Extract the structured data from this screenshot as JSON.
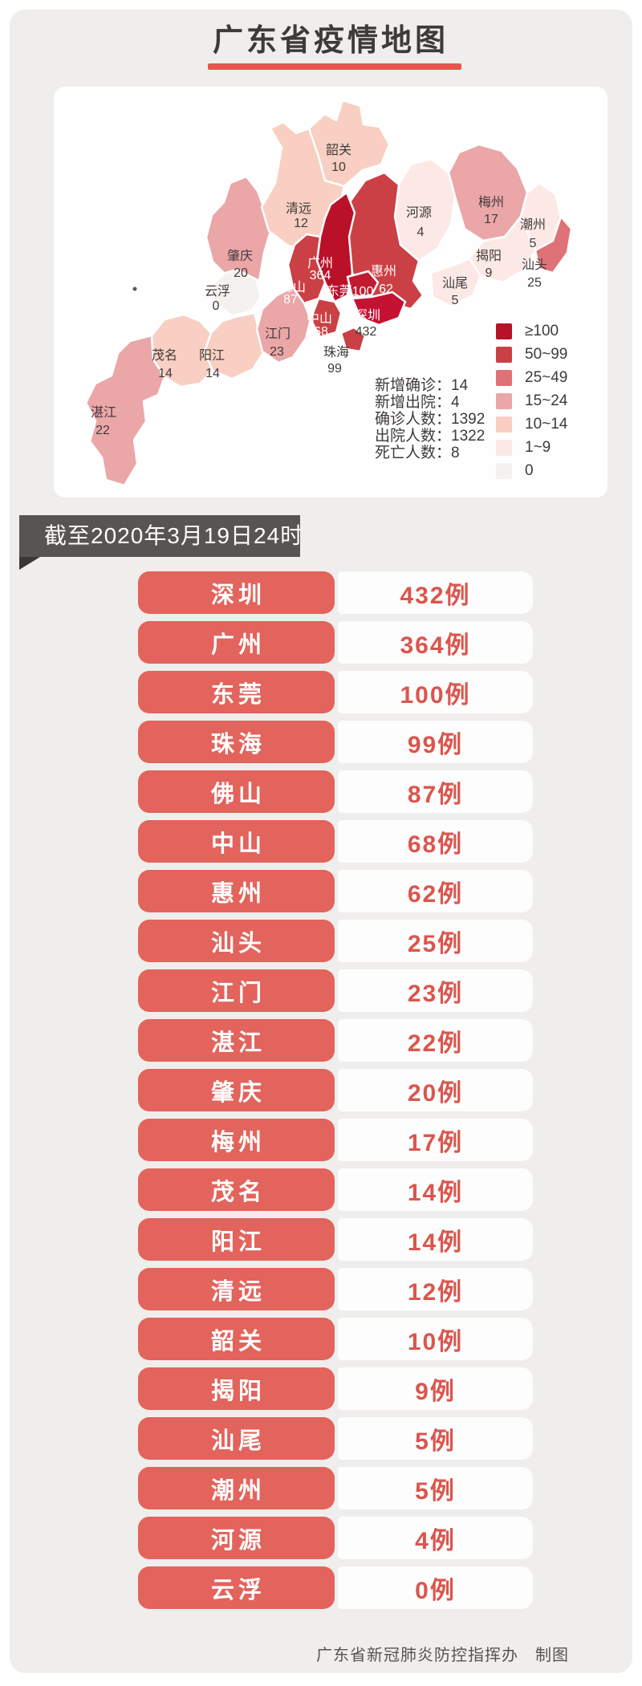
{
  "page": {
    "title": "广东省疫情地图",
    "date_banner": "截至2020年3月19日24时",
    "footer": "广东省新冠肺炎防控指挥办　制图"
  },
  "colors": {
    "accent": "#e2574e",
    "pill": "#e2645c",
    "case_text": "#dc554d",
    "banner_bg": "#575452",
    "banner_fold": "#3a3734",
    "card_bg": "#efeeec",
    "map_card_bg": "#fefefe",
    "ink": "#3e3a39",
    "footer_ink": "#575352"
  },
  "map": {
    "stats": [
      {
        "label": "新增确诊",
        "value": "14",
        "text": "新增确诊：14"
      },
      {
        "label": "新增出院",
        "value": "4",
        "text": "新增出院：4"
      },
      {
        "label": "确诊人数",
        "value": "1392",
        "text": "确诊人数：1392"
      },
      {
        "label": "出院人数",
        "value": "1322",
        "text": "出院人数：1322"
      },
      {
        "label": "死亡人数",
        "value": "8",
        "text": "死亡人数：8"
      }
    ],
    "legend": [
      {
        "label": "≥100",
        "color": "#b8122a"
      },
      {
        "label": "50~99",
        "color": "#cb4045"
      },
      {
        "label": "25~49",
        "color": "#df7277"
      },
      {
        "label": "15~24",
        "color": "#eba6a8"
      },
      {
        "label": "10~14",
        "color": "#f8cfc2"
      },
      {
        "label": "1~9",
        "color": "#fce9e5"
      },
      {
        "label": "0",
        "color": "#f4f2ef"
      }
    ],
    "regions": [
      {
        "id": "zhanjiang",
        "name": "湛江",
        "count": "22",
        "color": "#eba6a8",
        "name_color": "#3f3b3a",
        "count_color": "#3f3b3a"
      },
      {
        "id": "maoming",
        "name": "茂名",
        "count": "14",
        "color": "#f8cfc2",
        "name_color": "#3f3b3a",
        "count_color": "#3f3b3a"
      },
      {
        "id": "yangjiang",
        "name": "阳江",
        "count": "14",
        "color": "#f8cfc2",
        "name_color": "#3f3b3a",
        "count_color": "#3f3b3a"
      },
      {
        "id": "zhaoqing",
        "name": "肇庆",
        "count": "20",
        "color": "#eba6a8",
        "name_color": "#3f3b3a",
        "count_color": "#3f3b3a"
      },
      {
        "id": "yunfu",
        "name": "云浮",
        "count": "0",
        "color": "#f4f2ef",
        "name_color": "#3f3b3a",
        "count_color": "#3f3b3a"
      },
      {
        "id": "qingyuan",
        "name": "清远",
        "count": "12",
        "color": "#f8cfc2",
        "name_color": "#3f3b3a",
        "count_color": "#3f3b3a"
      },
      {
        "id": "shaoguan",
        "name": "韶关",
        "count": "10",
        "color": "#f8cfc2",
        "name_color": "#3f3b3a",
        "count_color": "#3f3b3a"
      },
      {
        "id": "heyuan",
        "name": "河源",
        "count": "4",
        "color": "#fce9e5",
        "name_color": "#3f3b3a",
        "count_color": "#3f3b3a"
      },
      {
        "id": "meizhou",
        "name": "梅州",
        "count": "17",
        "color": "#eba6a8",
        "name_color": "#3f3b3a",
        "count_color": "#3f3b3a"
      },
      {
        "id": "chaozhou",
        "name": "潮州",
        "count": "5",
        "color": "#fce9e5",
        "name_color": "#3f3b3a",
        "count_color": "#3f3b3a"
      },
      {
        "id": "jieyang",
        "name": "揭阳",
        "count": "9",
        "color": "#fce9e5",
        "name_color": "#3f3b3a",
        "count_color": "#3f3b3a"
      },
      {
        "id": "shantou",
        "name": "汕头",
        "count": "25",
        "color": "#df7277",
        "name_color": "#3f3b3a",
        "count_color": "#3f3b3a"
      },
      {
        "id": "shanwei",
        "name": "汕尾",
        "count": "5",
        "color": "#fce9e5",
        "name_color": "#3f3b3a",
        "count_color": "#3f3b3a"
      },
      {
        "id": "huizhou",
        "name": "惠州",
        "count": "62",
        "color": "#cb4045",
        "name_color": "#ffffff",
        "count_color": "#ffffff"
      },
      {
        "id": "jiangmen",
        "name": "江门",
        "count": "23",
        "color": "#eba6a8",
        "name_color": "#3f3b3a",
        "count_color": "#3f3b3a"
      },
      {
        "id": "guangzhou",
        "name": "广州",
        "count": "364",
        "color": "#ba1129",
        "name_color": "#ffffff",
        "count_color": "#ffffff"
      },
      {
        "id": "foshan",
        "name": "佛山",
        "count": "87",
        "color": "#cb4045",
        "name_color": "#ffffff",
        "count_color": "#ffffff"
      },
      {
        "id": "zhongshan",
        "name": "中山",
        "count": "68",
        "color": "#cb4045",
        "name_color": "#ffffff",
        "count_color": "#ffffff"
      },
      {
        "id": "zhuhai",
        "name": "珠海",
        "count": "99",
        "color": "#cb4045",
        "name_color": "#3f3b3a",
        "count_color": "#3f3b3a"
      },
      {
        "id": "dongguan",
        "name": "东莞",
        "count": "100",
        "color": "#c01b31",
        "name_color": "#ffffff",
        "count_color": "#ffffff",
        "inline": true
      },
      {
        "id": "shenzhen",
        "name": "深圳",
        "count": "432",
        "color": "#c51233",
        "name_color": "#ffffff",
        "count_color": "#3f3b3a"
      }
    ]
  },
  "table": {
    "rows": [
      {
        "city": "深圳",
        "value": "432",
        "text": "432例"
      },
      {
        "city": "广州",
        "value": "364",
        "text": "364例"
      },
      {
        "city": "东莞",
        "value": "100",
        "text": "100例"
      },
      {
        "city": "珠海",
        "value": "99",
        "text": "99例"
      },
      {
        "city": "佛山",
        "value": "87",
        "text": "87例"
      },
      {
        "city": "中山",
        "value": "68",
        "text": "68例"
      },
      {
        "city": "惠州",
        "value": "62",
        "text": "62例"
      },
      {
        "city": "汕头",
        "value": "25",
        "text": "25例"
      },
      {
        "city": "江门",
        "value": "23",
        "text": "23例"
      },
      {
        "city": "湛江",
        "value": "22",
        "text": "22例"
      },
      {
        "city": "肇庆",
        "value": "20",
        "text": "20例"
      },
      {
        "city": "梅州",
        "value": "17",
        "text": "17例"
      },
      {
        "city": "茂名",
        "value": "14",
        "text": "14例"
      },
      {
        "city": "阳江",
        "value": "14",
        "text": "14例"
      },
      {
        "city": "清远",
        "value": "12",
        "text": "12例"
      },
      {
        "city": "韶关",
        "value": "10",
        "text": "10例"
      },
      {
        "city": "揭阳",
        "value": "9",
        "text": "9例"
      },
      {
        "city": "汕尾",
        "value": "5",
        "text": "5例"
      },
      {
        "city": "潮州",
        "value": "5",
        "text": "5例"
      },
      {
        "city": "河源",
        "value": "4",
        "text": "4例"
      },
      {
        "city": "云浮",
        "value": "0",
        "text": "0例"
      }
    ]
  },
  "chart_data": {
    "type": "table",
    "title": "广东省疫情地图",
    "as_of": "截至2020年3月19日24时",
    "categories": [
      "深圳",
      "广州",
      "东莞",
      "珠海",
      "佛山",
      "中山",
      "惠州",
      "汕头",
      "江门",
      "湛江",
      "肇庆",
      "梅州",
      "茂名",
      "阳江",
      "清远",
      "韶关",
      "揭阳",
      "汕尾",
      "潮州",
      "河源",
      "云浮"
    ],
    "values": [
      432,
      364,
      100,
      99,
      87,
      68,
      62,
      25,
      23,
      22,
      20,
      17,
      14,
      14,
      12,
      10,
      9,
      5,
      5,
      4,
      0
    ],
    "legend_bins": [
      "≥100",
      "50~99",
      "25~49",
      "15~24",
      "10~14",
      "1~9",
      "0"
    ],
    "summary": {
      "新增确诊": 14,
      "新增出院": 4,
      "确诊人数": 1392,
      "出院人数": 1322,
      "死亡人数": 8
    }
  }
}
